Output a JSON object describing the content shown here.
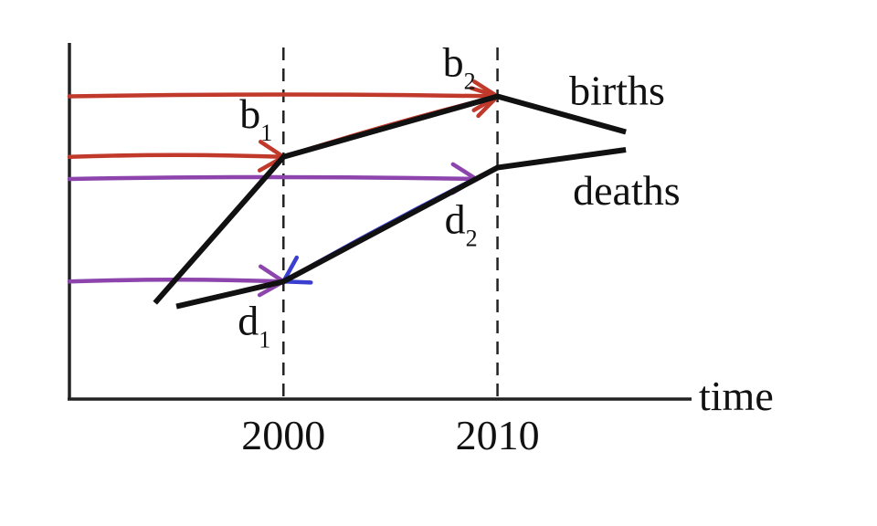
{
  "chart_data": {
    "type": "line",
    "xlabel": "time",
    "x_ticks": [
      "2000",
      "2010"
    ],
    "series": [
      {
        "name": "births",
        "points": [
          {
            "x": 1994,
            "y": 27
          },
          {
            "x": 2000,
            "y": 68
          },
          {
            "x": 2010,
            "y": 85
          },
          {
            "x": 2016,
            "y": 75
          }
        ]
      },
      {
        "name": "deaths",
        "points": [
          {
            "x": 1995,
            "y": 26
          },
          {
            "x": 2000,
            "y": 33
          },
          {
            "x": 2010,
            "y": 65
          },
          {
            "x": 2016,
            "y": 70
          }
        ]
      }
    ],
    "point_labels": [
      {
        "series": "births",
        "x": 2000,
        "base": "b",
        "sub": "1"
      },
      {
        "series": "births",
        "x": 2010,
        "base": "b",
        "sub": "2"
      },
      {
        "series": "deaths",
        "x": 2000,
        "base": "d",
        "sub": "1"
      },
      {
        "series": "deaths",
        "x": 2010,
        "base": "d",
        "sub": "2"
      }
    ],
    "annotations": [
      {
        "color": "#c0392b",
        "from_x": 1990,
        "to_series": "births",
        "to_x": 2000
      },
      {
        "color": "#c0392b",
        "from_x": 1990,
        "to_series": "births",
        "to_x": 2010
      },
      {
        "color": "#8e44ad",
        "from_x": 1990,
        "to_series": "deaths",
        "to_x": 2000
      },
      {
        "color": "#8e44ad",
        "from_x": 1990,
        "to_series": "deaths",
        "to_x": 2009
      },
      {
        "color": "#c0392b",
        "from_series": "births",
        "from_x": 2000,
        "to_series": "births",
        "to_x": 2010
      },
      {
        "color": "#3a3fcf",
        "from_series": "deaths",
        "from_x": 2010,
        "to_series": "deaths",
        "to_x": 2000
      }
    ],
    "xlim": [
      1990,
      2025
    ],
    "ylim": [
      0,
      100
    ],
    "grid": false,
    "legend": "inline-right"
  }
}
